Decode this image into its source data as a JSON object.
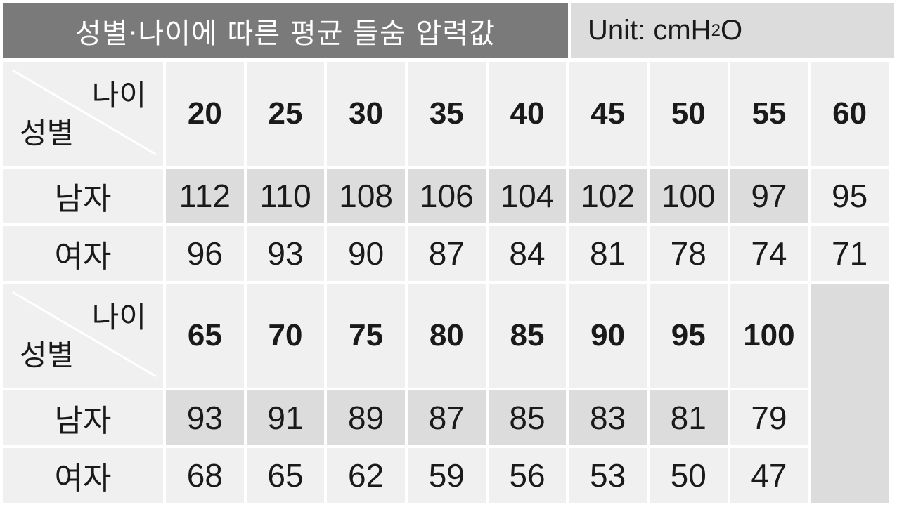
{
  "title": "성별·나이에 따른 평균 들숨 압력값",
  "unit": {
    "prefix": "Unit: cmH",
    "sub": "2",
    "suffix": "O"
  },
  "corner": {
    "age": "나이",
    "sex": "성별"
  },
  "row_labels": {
    "male": "남자",
    "female": "여자"
  },
  "table1": {
    "ages": [
      "20",
      "25",
      "30",
      "35",
      "40",
      "45",
      "50",
      "55",
      "60"
    ],
    "male": [
      "112",
      "110",
      "108",
      "106",
      "104",
      "102",
      "100",
      "97",
      "95"
    ],
    "female": [
      "96",
      "93",
      "90",
      "87",
      "84",
      "81",
      "78",
      "74",
      "71"
    ]
  },
  "table2": {
    "ages": [
      "65",
      "70",
      "75",
      "80",
      "85",
      "90",
      "95",
      "100"
    ],
    "male": [
      "93",
      "91",
      "89",
      "87",
      "85",
      "83",
      "81",
      "79"
    ],
    "female": [
      "68",
      "65",
      "62",
      "59",
      "56",
      "53",
      "50",
      "47"
    ]
  },
  "colors": {
    "title_bg": "#7a7a7a",
    "unit_bg": "#dcdcdc",
    "cell_light": "#f0f0f0",
    "cell_dark": "#dcdcdc"
  }
}
